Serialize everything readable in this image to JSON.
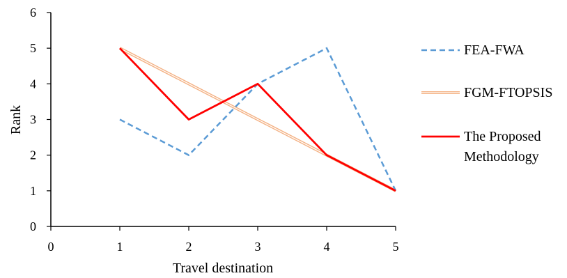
{
  "chart_data": {
    "type": "line",
    "title": "",
    "xlabel": "Travel destination",
    "ylabel": "Rank",
    "xlim": [
      0,
      5
    ],
    "ylim": [
      0,
      6
    ],
    "x_ticks": [
      "0",
      "1",
      "2",
      "3",
      "4",
      "5"
    ],
    "y_ticks": [
      "0",
      "1",
      "2",
      "3",
      "4",
      "5",
      "6"
    ],
    "grid": false,
    "legend_position": "right",
    "x": [
      1,
      2,
      3,
      4,
      5
    ],
    "series": [
      {
        "name": "FEA-FWA",
        "values": [
          3,
          2,
          4,
          5,
          1
        ],
        "color": "#5B9BD5",
        "style": "dashed"
      },
      {
        "name": "FGM-FTOPSIS",
        "values": [
          5,
          4,
          3,
          2,
          1
        ],
        "color": "#F4B183",
        "style": "double"
      },
      {
        "name": "The Proposed Methodology",
        "legend_lines": [
          "The Proposed",
          "Methodology"
        ],
        "values": [
          5,
          3,
          4,
          2,
          1
        ],
        "color": "#FF0000",
        "style": "solid"
      }
    ]
  }
}
